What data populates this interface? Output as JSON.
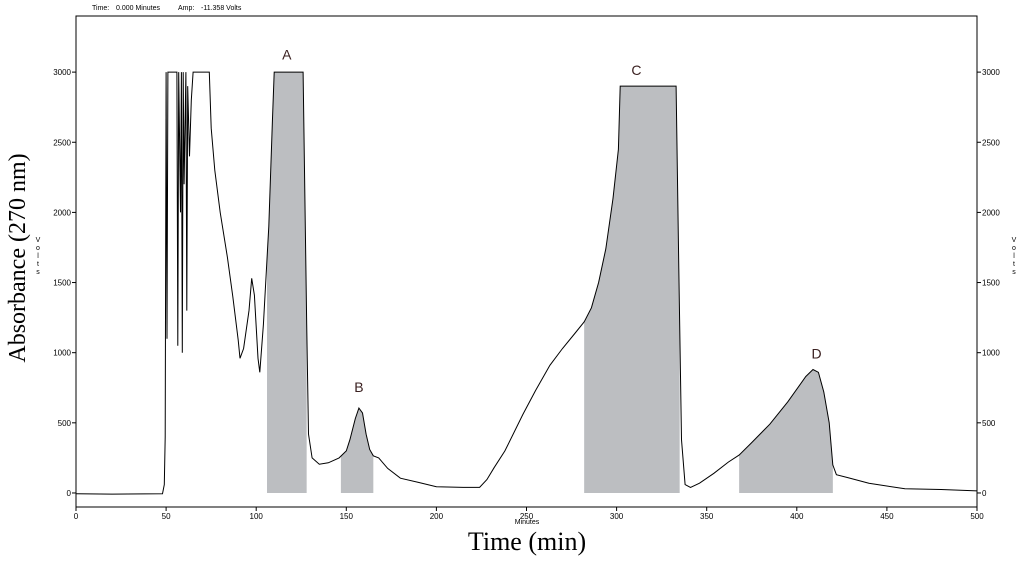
{
  "header": {
    "time_label": "Time:",
    "time_value": "0.000 Minutes",
    "amp_label": "Amp:",
    "amp_value": "-11.358 Volts"
  },
  "chart_data": {
    "type": "line",
    "xlabel": "Time (min)",
    "xlabel_small": "Minutes",
    "ylabel": "Absorbance (270 nm)",
    "ylabel_small": "Volts",
    "xlim": [
      0,
      500
    ],
    "ylim": [
      -100,
      3400
    ],
    "x_ticks": [
      0,
      50,
      100,
      150,
      200,
      250,
      300,
      350,
      400,
      450,
      500
    ],
    "y_ticks": [
      0,
      500,
      1000,
      1500,
      2000,
      2500,
      3000
    ],
    "grid": false,
    "line_color": "#000000",
    "fill_color": "#bcbec1",
    "series": [
      {
        "values": [
          [
            0,
            -5
          ],
          [
            20,
            -8
          ],
          [
            48,
            -5
          ],
          [
            49,
            60
          ],
          [
            49.5,
            400
          ],
          [
            50,
            3000
          ],
          [
            50.5,
            1100
          ],
          [
            51,
            3000
          ],
          [
            56,
            3000
          ],
          [
            56.5,
            1050
          ],
          [
            57,
            3000
          ],
          [
            58,
            2000
          ],
          [
            58.5,
            3000
          ],
          [
            59,
            1000
          ],
          [
            59.5,
            3000
          ],
          [
            60,
            2200
          ],
          [
            61,
            3000
          ],
          [
            61.5,
            1300
          ],
          [
            62,
            2900
          ],
          [
            63,
            2400
          ],
          [
            64,
            2800
          ],
          [
            65,
            3000
          ],
          [
            74,
            3000
          ],
          [
            75,
            2600
          ],
          [
            77,
            2300
          ],
          [
            80,
            2000
          ],
          [
            84,
            1680
          ],
          [
            87,
            1400
          ],
          [
            90,
            1090
          ],
          [
            91,
            960
          ],
          [
            93,
            1030
          ],
          [
            96,
            1300
          ],
          [
            97.5,
            1530
          ],
          [
            99,
            1410
          ],
          [
            101,
            960
          ],
          [
            102,
            860
          ],
          [
            104,
            1200
          ],
          [
            107,
            1900
          ],
          [
            109,
            2650
          ],
          [
            110,
            3000
          ],
          [
            126,
            3000
          ],
          [
            128,
            1200
          ],
          [
            129,
            420
          ],
          [
            131,
            250
          ],
          [
            135,
            205
          ],
          [
            140,
            215
          ],
          [
            146,
            250
          ],
          [
            150,
            300
          ],
          [
            152,
            380
          ],
          [
            155,
            530
          ],
          [
            157,
            605
          ],
          [
            159,
            570
          ],
          [
            161,
            420
          ],
          [
            163,
            310
          ],
          [
            165,
            265
          ],
          [
            168,
            250
          ],
          [
            173,
            175
          ],
          [
            180,
            105
          ],
          [
            190,
            75
          ],
          [
            200,
            45
          ],
          [
            215,
            40
          ],
          [
            224,
            40
          ],
          [
            228,
            95
          ],
          [
            232,
            180
          ],
          [
            238,
            300
          ],
          [
            248,
            560
          ],
          [
            255,
            730
          ],
          [
            263,
            910
          ],
          [
            270,
            1030
          ],
          [
            277,
            1140
          ],
          [
            282,
            1220
          ],
          [
            286,
            1320
          ],
          [
            290,
            1500
          ],
          [
            294,
            1740
          ],
          [
            298,
            2100
          ],
          [
            301,
            2450
          ],
          [
            302,
            2900
          ],
          [
            333,
            2900
          ],
          [
            334.5,
            1600
          ],
          [
            336,
            380
          ],
          [
            338,
            60
          ],
          [
            341,
            40
          ],
          [
            346,
            70
          ],
          [
            354,
            140
          ],
          [
            362,
            220
          ],
          [
            368,
            270
          ],
          [
            375,
            360
          ],
          [
            385,
            490
          ],
          [
            395,
            650
          ],
          [
            405,
            830
          ],
          [
            409,
            880
          ],
          [
            412,
            860
          ],
          [
            415,
            720
          ],
          [
            418,
            500
          ],
          [
            420,
            200
          ],
          [
            422,
            130
          ],
          [
            428,
            110
          ],
          [
            440,
            70
          ],
          [
            460,
            30
          ],
          [
            480,
            25
          ],
          [
            500,
            15
          ]
        ]
      }
    ],
    "shaded_regions": [
      {
        "label": "A",
        "start": 106,
        "end": 128,
        "label_x": 117,
        "label_y": 3090
      },
      {
        "label": "B",
        "start": 147,
        "end": 165,
        "label_x": 157,
        "label_y": 720
      },
      {
        "label": "C",
        "start": 282,
        "end": 335,
        "label_x": 311,
        "label_y": 2980
      },
      {
        "label": "D",
        "start": 368,
        "end": 420,
        "label_x": 411,
        "label_y": 960
      }
    ]
  }
}
